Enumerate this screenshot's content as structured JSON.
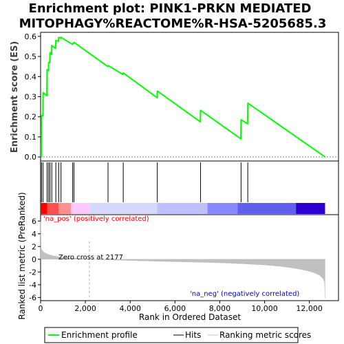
{
  "chart_data": {
    "type": "line",
    "title_line1": "Enrichment plot: PINK1-PRKN MEDIATED",
    "title_line2": "MITOPHAGY%REACTOME%R-HSA-5205685.3",
    "xlabel": "Rank in Ordered Dataset",
    "es_ylabel": "Enrichment score (ES)",
    "metric_ylabel_line1": "Ranked list metric (PreRanked)",
    "xlim": [
      0,
      13300
    ],
    "es_ylim": [
      -0.02,
      0.62
    ],
    "metric_ylim": [
      -6.5,
      7
    ],
    "x_ticks": [
      0,
      2000,
      4000,
      6000,
      8000,
      10000,
      12000
    ],
    "x_tick_labels": [
      "0",
      "2,000",
      "4,000",
      "6,000",
      "8,000",
      "10,000",
      "12,000"
    ],
    "es_ticks": [
      0.0,
      0.1,
      0.2,
      0.3,
      0.4,
      0.5,
      0.6
    ],
    "es_tick_labels": [
      "0.0",
      "0.1",
      "0.2",
      "0.3",
      "0.4",
      "0.5",
      "0.6"
    ],
    "metric_ticks": [
      6,
      4,
      2,
      0,
      -2,
      -4,
      -6
    ],
    "metric_tick_labels": [
      "6",
      "4",
      "2",
      "0",
      "-2",
      "-4",
      "-6"
    ],
    "enrichment_profile": {
      "name": "Enrichment profile",
      "color": "#00ff00",
      "x": [
        0,
        30,
        40,
        100,
        110,
        280,
        290,
        350,
        360,
        410,
        420,
        490,
        500,
        670,
        680,
        800,
        810,
        900,
        910,
        1420,
        1430,
        1480,
        1490,
        3000,
        3010,
        3680,
        3690,
        5200,
        5210,
        7130,
        7140,
        8940,
        8950,
        9240,
        9250,
        12700
      ],
      "y": [
        0.0,
        0.0,
        0.205,
        0.205,
        0.32,
        0.305,
        0.435,
        0.43,
        0.47,
        0.47,
        0.52,
        0.51,
        0.555,
        0.54,
        0.58,
        0.575,
        0.595,
        0.59,
        0.595,
        0.56,
        0.565,
        0.565,
        0.57,
        0.45,
        0.455,
        0.41,
        0.418,
        0.295,
        0.328,
        0.175,
        0.232,
        0.09,
        0.185,
        0.165,
        0.268,
        0.0
      ]
    },
    "hits": {
      "name": "Hits",
      "color": "#000000",
      "x": [
        40,
        110,
        290,
        360,
        420,
        500,
        680,
        810,
        910,
        1430,
        1490,
        3010,
        3690,
        5210,
        7140,
        8950,
        9250
      ]
    },
    "ranking_metric": {
      "name": "Ranking metric scores",
      "color": "#c0c0c0",
      "x": [
        0,
        30,
        80,
        150,
        250,
        400,
        600,
        900,
        1300,
        1800,
        2177,
        3000,
        4000,
        5000,
        6000,
        7000,
        8000,
        9000,
        10000,
        10800,
        11400,
        11900,
        12200,
        12450,
        12600,
        12680,
        12700
      ],
      "y": [
        6.0,
        1.7,
        1.35,
        1.1,
        0.9,
        0.7,
        0.5,
        0.35,
        0.22,
        0.1,
        0.0,
        -0.1,
        -0.2,
        -0.3,
        -0.38,
        -0.46,
        -0.56,
        -0.7,
        -0.9,
        -1.15,
        -1.45,
        -1.8,
        -2.1,
        -2.5,
        -3.0,
        -3.6,
        -6.1
      ]
    },
    "color_band": {
      "segments": [
        {
          "x0": 0,
          "x1": 300,
          "color": "#ff0000"
        },
        {
          "x0": 300,
          "x1": 800,
          "color": "#ff5050"
        },
        {
          "x0": 800,
          "x1": 1350,
          "color": "#ff9090"
        },
        {
          "x0": 1350,
          "x1": 2177,
          "color": "#ffc8ff"
        },
        {
          "x0": 2177,
          "x1": 5200,
          "color": "#d8d8ff"
        },
        {
          "x0": 5200,
          "x1": 7450,
          "color": "#c0c0ff"
        },
        {
          "x0": 7450,
          "x1": 8800,
          "color": "#8888ff"
        },
        {
          "x0": 8800,
          "x1": 11400,
          "color": "#6060ee"
        },
        {
          "x0": 11400,
          "x1": 12700,
          "color": "#2a00d0"
        }
      ]
    },
    "zero_cross": {
      "x": 2177,
      "label": "Zero cross at 2177"
    },
    "annotations": {
      "pos_label": "'na_pos' (positively correlated)",
      "pos_color": "#ff0000",
      "neg_label": "'na_neg' (negatively correlated)",
      "neg_color": "#0000cc"
    },
    "legend": {
      "placement": "bottom",
      "entries": [
        "Enrichment profile",
        "Hits",
        "Ranking metric scores"
      ]
    }
  }
}
